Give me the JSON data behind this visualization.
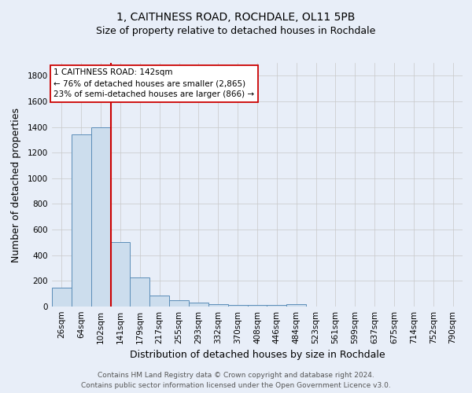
{
  "title_line1": "1, CAITHNESS ROAD, ROCHDALE, OL11 5PB",
  "title_line2": "Size of property relative to detached houses in Rochdale",
  "xlabel": "Distribution of detached houses by size in Rochdale",
  "ylabel": "Number of detached properties",
  "footer_line1": "Contains HM Land Registry data © Crown copyright and database right 2024.",
  "footer_line2": "Contains public sector information licensed under the Open Government Licence v3.0.",
  "categories": [
    "26sqm",
    "64sqm",
    "102sqm",
    "141sqm",
    "179sqm",
    "217sqm",
    "255sqm",
    "293sqm",
    "332sqm",
    "370sqm",
    "408sqm",
    "446sqm",
    "484sqm",
    "523sqm",
    "561sqm",
    "599sqm",
    "637sqm",
    "675sqm",
    "714sqm",
    "752sqm",
    "790sqm"
  ],
  "values": [
    145,
    1340,
    1400,
    500,
    225,
    85,
    50,
    30,
    20,
    15,
    10,
    10,
    20,
    0,
    0,
    0,
    0,
    0,
    0,
    0,
    0
  ],
  "bar_color": "#ccdded",
  "bar_edge_color": "#5b8db8",
  "background_color": "#e8eef8",
  "grid_color": "#c8c8c8",
  "red_line_color": "#cc0000",
  "annotation_text_line1": "1 CAITHNESS ROAD: 142sqm",
  "annotation_text_line2": "← 76% of detached houses are smaller (2,865)",
  "annotation_text_line3": "23% of semi-detached houses are larger (866) →",
  "annotation_box_color": "#ffffff",
  "annotation_box_edge": "#cc0000",
  "ylim": [
    0,
    1900
  ],
  "yticks": [
    0,
    200,
    400,
    600,
    800,
    1000,
    1200,
    1400,
    1600,
    1800
  ],
  "title1_fontsize": 10,
  "title2_fontsize": 9,
  "xlabel_fontsize": 9,
  "ylabel_fontsize": 9,
  "tick_fontsize": 7.5,
  "footer_fontsize": 6.5
}
